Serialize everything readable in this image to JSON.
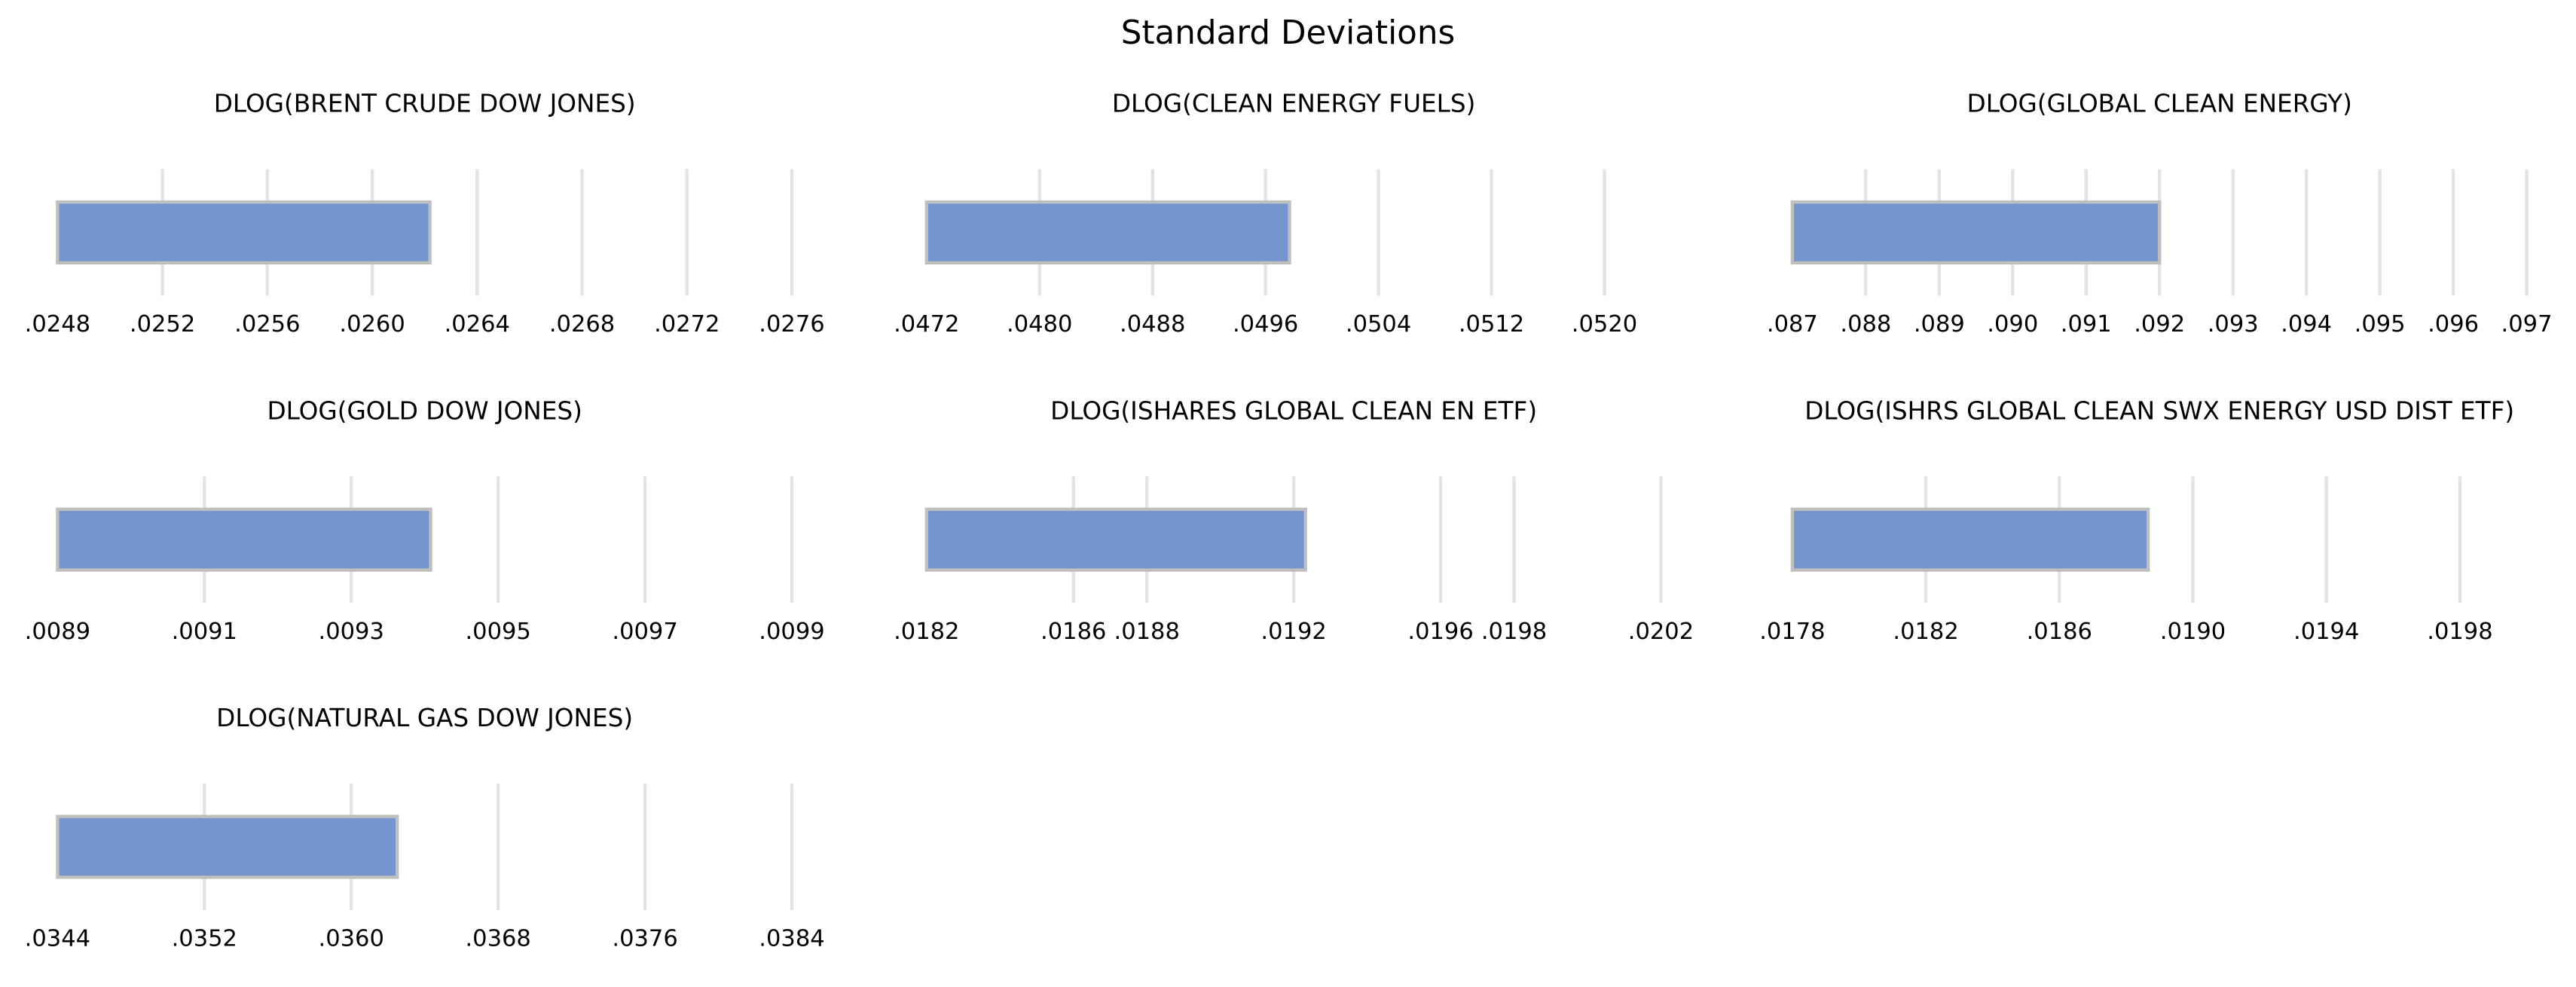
{
  "title": "Standard Deviations",
  "chart_data": [
    {
      "type": "bar",
      "title": "DLOG(BRENT CRUDE DOW JONES)",
      "values": [
        0.02622
      ],
      "color": "#7394cc",
      "xlim": [
        0.0248,
        0.0276
      ],
      "xticks": [
        {
          "value": 0.0248,
          "label": ".0248"
        },
        {
          "value": 0.0252,
          "label": ".0252"
        },
        {
          "value": 0.0256,
          "label": ".0256"
        },
        {
          "value": 0.026,
          "label": ".0260"
        },
        {
          "value": 0.0264,
          "label": ".0264"
        },
        {
          "value": 0.0268,
          "label": ".0268"
        },
        {
          "value": 0.0272,
          "label": ".0272"
        },
        {
          "value": 0.0276,
          "label": ".0276"
        }
      ],
      "grid": true
    },
    {
      "type": "bar",
      "title": "DLOG(CLEAN ENERGY FUELS)",
      "values": [
        0.04977
      ],
      "color": "#7394cc",
      "xlim": [
        0.0472,
        0.0524
      ],
      "xticks": [
        {
          "value": 0.0472,
          "label": ".0472"
        },
        {
          "value": 0.048,
          "label": ".0480"
        },
        {
          "value": 0.0488,
          "label": ".0488"
        },
        {
          "value": 0.0496,
          "label": ".0496"
        },
        {
          "value": 0.0504,
          "label": ".0504"
        },
        {
          "value": 0.0512,
          "label": ".0512"
        },
        {
          "value": 0.052,
          "label": ".0520"
        }
      ],
      "grid": true
    },
    {
      "type": "bar",
      "title": "DLOG(GLOBAL CLEAN ENERGY)",
      "values": [
        0.092
      ],
      "color": "#7394cc",
      "xlim": [
        0.087,
        0.097
      ],
      "xticks": [
        {
          "value": 0.087,
          "label": ".087"
        },
        {
          "value": 0.088,
          "label": ".088"
        },
        {
          "value": 0.089,
          "label": ".089"
        },
        {
          "value": 0.09,
          "label": ".090"
        },
        {
          "value": 0.091,
          "label": ".091"
        },
        {
          "value": 0.092,
          "label": ".092"
        },
        {
          "value": 0.093,
          "label": ".093"
        },
        {
          "value": 0.094,
          "label": ".094"
        },
        {
          "value": 0.095,
          "label": ".095"
        },
        {
          "value": 0.096,
          "label": ".096"
        },
        {
          "value": 0.097,
          "label": ".097"
        }
      ],
      "grid": true
    },
    {
      "type": "bar",
      "title": "DLOG(GOLD DOW JONES)",
      "values": [
        0.009408
      ],
      "color": "#7394cc",
      "xlim": [
        0.0089,
        0.0099
      ],
      "xticks": [
        {
          "value": 0.0089,
          "label": ".0089"
        },
        {
          "value": 0.0091,
          "label": ".0091"
        },
        {
          "value": 0.0093,
          "label": ".0093"
        },
        {
          "value": 0.0095,
          "label": ".0095"
        },
        {
          "value": 0.0097,
          "label": ".0097"
        },
        {
          "value": 0.0099,
          "label": ".0099"
        }
      ],
      "grid": true
    },
    {
      "type": "bar",
      "title": "DLOG(ISHARES GLOBAL CLEAN EN ETF)",
      "values": [
        0.019232
      ],
      "color": "#7394cc",
      "xlim": [
        0.0182,
        0.0202
      ],
      "xticks": [
        {
          "value": 0.0182,
          "label": ".0182"
        },
        {
          "value": 0.0186,
          "label": ".0186"
        },
        {
          "value": 0.0188,
          "label": ".0188"
        },
        {
          "value": 0.0192,
          "label": ".0192"
        },
        {
          "value": 0.0196,
          "label": ".0196"
        },
        {
          "value": 0.0198,
          "label": ".0198"
        },
        {
          "value": 0.0202,
          "label": ".0202"
        }
      ],
      "grid": true
    },
    {
      "type": "bar",
      "title": "DLOG(ISHRS GLOBAL CLEAN SWX ENERGY USD DIST ETF)",
      "values": [
        0.018866
      ],
      "color": "#7394cc",
      "xlim": [
        0.0178,
        0.02
      ],
      "xticks": [
        {
          "value": 0.0178,
          "label": ".0178"
        },
        {
          "value": 0.0182,
          "label": ".0182"
        },
        {
          "value": 0.0186,
          "label": ".0186"
        },
        {
          "value": 0.019,
          "label": ".0190"
        },
        {
          "value": 0.0194,
          "label": ".0194"
        },
        {
          "value": 0.0198,
          "label": ".0198"
        }
      ],
      "grid": true
    },
    {
      "type": "bar",
      "title": "DLOG(NATURAL GAS DOW JONES)",
      "values": [
        0.03625
      ],
      "color": "#7394cc",
      "xlim": [
        0.0344,
        0.0384
      ],
      "xticks": [
        {
          "value": 0.0344,
          "label": ".0344"
        },
        {
          "value": 0.0352,
          "label": ".0352"
        },
        {
          "value": 0.036,
          "label": ".0360"
        },
        {
          "value": 0.0368,
          "label": ".0368"
        },
        {
          "value": 0.0376,
          "label": ".0376"
        },
        {
          "value": 0.0384,
          "label": ".0384"
        }
      ],
      "grid": true
    }
  ]
}
